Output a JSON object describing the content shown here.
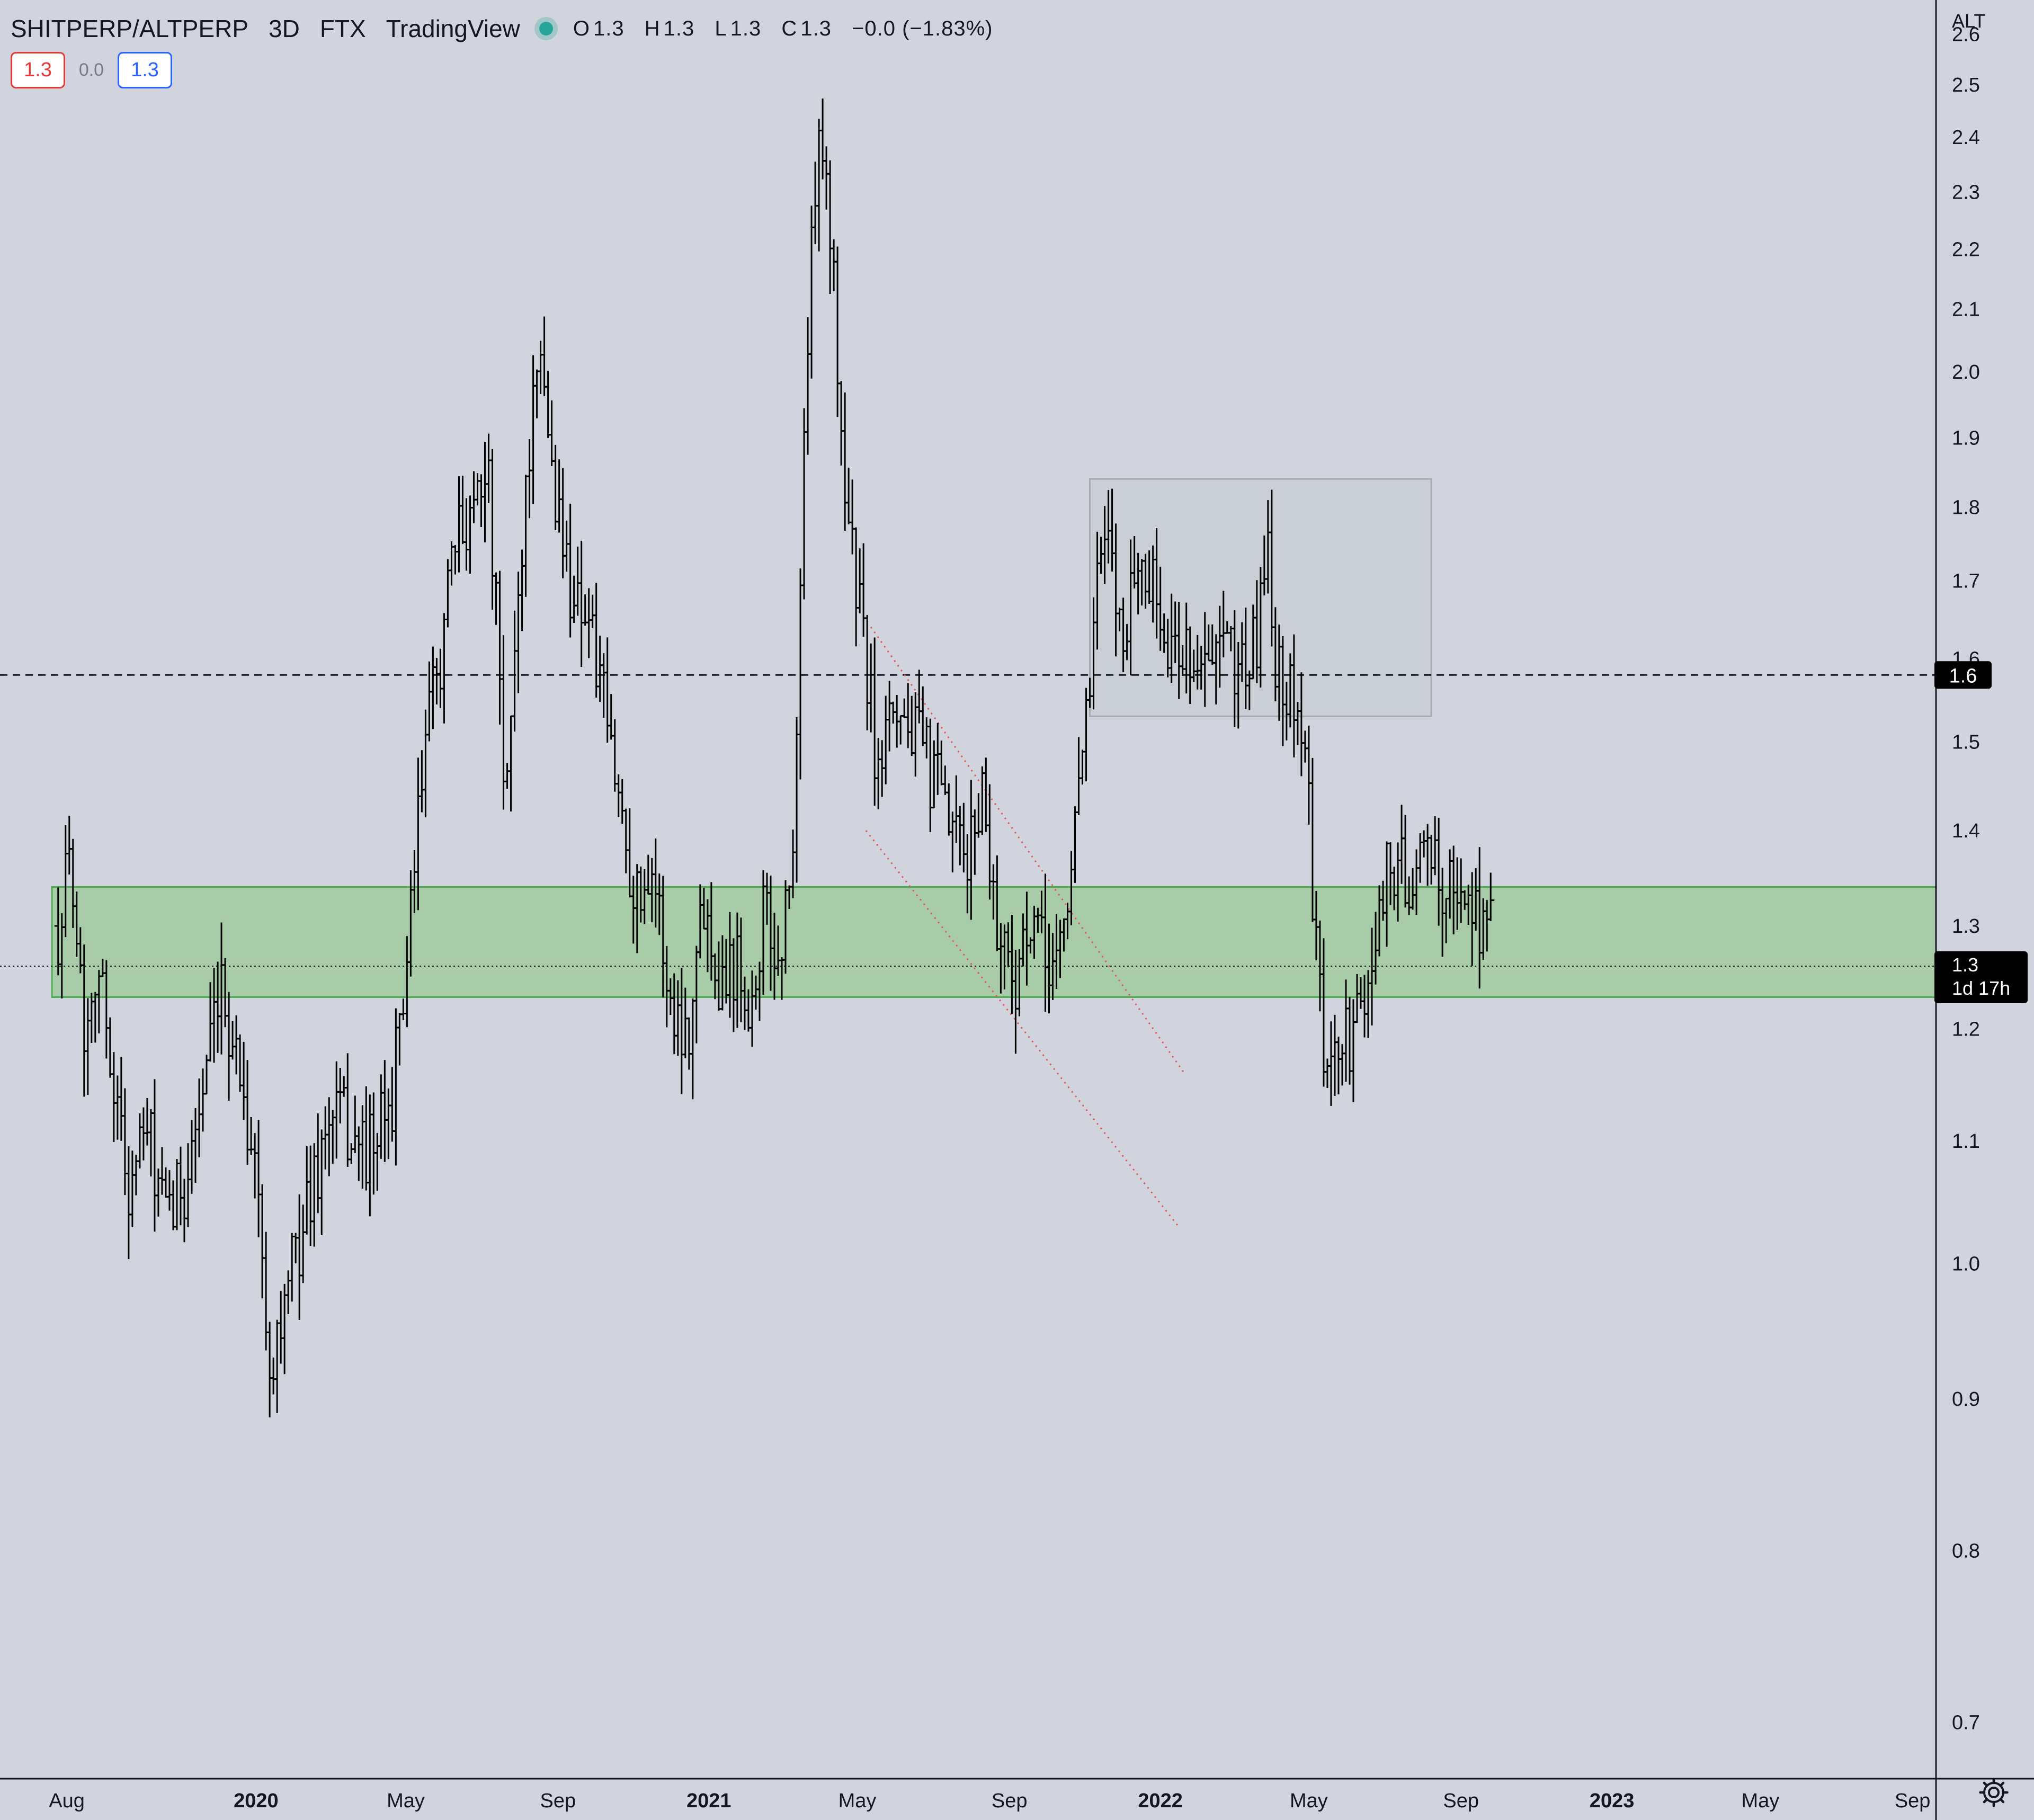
{
  "header": {
    "symbol": "SHITPERP/ALTPERP",
    "interval": "3D",
    "exchange": "FTX",
    "source": "TradingView",
    "ohlc": {
      "o_label": "O",
      "o_value": "1.3",
      "h_label": "H",
      "h_value": "1.3",
      "l_label": "L",
      "l_value": "1.3",
      "c_label": "C",
      "c_value": "1.3",
      "change": "−0.0 (−1.83%)"
    }
  },
  "quote": {
    "bid": "1.3",
    "spread": "0.0",
    "ask": "1.3"
  },
  "colors": {
    "background": "#d1d4dc",
    "candles": "#000000",
    "support_zone_fill": "#a8cba8",
    "support_zone_border": "#4caf50",
    "range_box_fill": "#c9ccd3",
    "range_box_border": "#a7aab2",
    "trendline": "#e35a5a",
    "price_tag_bg": "#000000",
    "price_tag_text": "#ffffff",
    "status_dot": "#26a69a"
  },
  "icons": {
    "settings": "gear-icon"
  },
  "chart_data": {
    "type": "ohlc",
    "scale": "log",
    "grid": false,
    "y_axis": {
      "unit": "ALT",
      "ticks": [
        0.7,
        0.8,
        0.9,
        1.0,
        1.1,
        1.2,
        1.3,
        1.4,
        1.5,
        1.6,
        1.7,
        1.8,
        1.9,
        2.0,
        2.1,
        2.2,
        2.3,
        2.4,
        2.5,
        2.6
      ],
      "tick_labels": [
        "0.7",
        "0.8",
        "0.9",
        "1.0",
        "1.1",
        "1.2",
        "1.3",
        "1.4",
        "1.5",
        "1.6",
        "1.7",
        "1.8",
        "1.9",
        "2.0",
        "2.1",
        "2.2",
        "2.3",
        "2.4",
        "2.5",
        "2.6"
      ],
      "range": [
        0.67,
        2.67
      ]
    },
    "x_axis": {
      "range": [
        "2019-06-08",
        "2023-09-20"
      ],
      "ticks": [
        {
          "label": "Aug",
          "date": "2019-08-01",
          "bold": false
        },
        {
          "label": "2020",
          "date": "2020-01-01",
          "bold": true
        },
        {
          "label": "May",
          "date": "2020-05-01",
          "bold": false
        },
        {
          "label": "Sep",
          "date": "2020-09-01",
          "bold": false
        },
        {
          "label": "2021",
          "date": "2021-01-01",
          "bold": true
        },
        {
          "label": "May",
          "date": "2021-05-01",
          "bold": false
        },
        {
          "label": "Sep",
          "date": "2021-09-01",
          "bold": false
        },
        {
          "label": "2022",
          "date": "2022-01-01",
          "bold": true
        },
        {
          "label": "May",
          "date": "2022-05-01",
          "bold": false
        },
        {
          "label": "Sep",
          "date": "2022-09-01",
          "bold": false
        },
        {
          "label": "2023",
          "date": "2023-01-01",
          "bold": true
        },
        {
          "label": "May",
          "date": "2023-05-01",
          "bold": false
        },
        {
          "label": "Sep",
          "date": "2023-09-01",
          "bold": false
        }
      ]
    },
    "price_trajectory": [
      [
        "2019-07-25",
        1.3
      ],
      [
        "2019-08-05",
        1.38
      ],
      [
        "2019-08-15",
        1.2
      ],
      [
        "2019-08-25",
        1.27
      ],
      [
        "2019-09-05",
        1.18
      ],
      [
        "2019-09-20",
        1.06
      ],
      [
        "2019-10-05",
        1.11
      ],
      [
        "2019-10-20",
        1.03
      ],
      [
        "2019-11-05",
        1.07
      ],
      [
        "2019-11-20",
        1.15
      ],
      [
        "2019-12-05",
        1.23
      ],
      [
        "2019-12-20",
        1.16
      ],
      [
        "2020-01-05",
        1.04
      ],
      [
        "2020-01-08",
        0.93
      ],
      [
        "2020-01-20",
        0.95
      ],
      [
        "2020-02-05",
        1.02
      ],
      [
        "2020-02-20",
        1.08
      ],
      [
        "2020-03-05",
        1.13
      ],
      [
        "2020-03-20",
        1.1
      ],
      [
        "2020-04-05",
        1.09
      ],
      [
        "2020-04-20",
        1.14
      ],
      [
        "2020-05-05",
        1.3
      ],
      [
        "2020-05-15",
        1.48
      ],
      [
        "2020-05-28",
        1.6
      ],
      [
        "2020-06-10",
        1.74
      ],
      [
        "2020-06-25",
        1.82
      ],
      [
        "2020-07-05",
        1.88
      ],
      [
        "2020-07-15",
        1.6
      ],
      [
        "2020-07-20",
        1.4
      ],
      [
        "2020-07-28",
        1.62
      ],
      [
        "2020-08-10",
        1.92
      ],
      [
        "2020-08-20",
        2.0
      ],
      [
        "2020-08-28",
        1.84
      ],
      [
        "2020-09-10",
        1.7
      ],
      [
        "2020-09-25",
        1.66
      ],
      [
        "2020-10-10",
        1.52
      ],
      [
        "2020-10-25",
        1.4
      ],
      [
        "2020-11-05",
        1.32
      ],
      [
        "2020-11-15",
        1.38
      ],
      [
        "2020-12-01",
        1.22
      ],
      [
        "2020-12-15",
        1.2
      ],
      [
        "2020-12-28",
        1.33
      ],
      [
        "2021-01-10",
        1.25
      ],
      [
        "2021-01-25",
        1.27
      ],
      [
        "2021-02-05",
        1.22
      ],
      [
        "2021-02-15",
        1.32
      ],
      [
        "2021-02-25",
        1.26
      ],
      [
        "2021-03-08",
        1.34
      ],
      [
        "2021-03-14",
        1.55
      ],
      [
        "2021-03-20",
        1.98
      ],
      [
        "2021-03-28",
        2.3
      ],
      [
        "2021-04-03",
        2.42
      ],
      [
        "2021-04-10",
        2.2
      ],
      [
        "2021-04-18",
        1.9
      ],
      [
        "2021-04-28",
        1.72
      ],
      [
        "2021-05-08",
        1.6
      ],
      [
        "2021-05-18",
        1.45
      ],
      [
        "2021-05-25",
        1.58
      ],
      [
        "2021-06-05",
        1.54
      ],
      [
        "2021-06-18",
        1.5
      ],
      [
        "2021-07-01",
        1.46
      ],
      [
        "2021-07-15",
        1.4
      ],
      [
        "2021-07-28",
        1.36
      ],
      [
        "2021-08-10",
        1.45
      ],
      [
        "2021-08-22",
        1.3
      ],
      [
        "2021-09-05",
        1.25
      ],
      [
        "2021-09-20",
        1.29
      ],
      [
        "2021-10-05",
        1.26
      ],
      [
        "2021-10-18",
        1.31
      ],
      [
        "2021-10-28",
        1.5
      ],
      [
        "2021-11-05",
        1.56
      ],
      [
        "2021-11-12",
        1.72
      ],
      [
        "2021-11-20",
        1.74
      ],
      [
        "2021-12-01",
        1.63
      ],
      [
        "2021-12-12",
        1.72
      ],
      [
        "2021-12-25",
        1.7
      ],
      [
        "2022-01-08",
        1.6
      ],
      [
        "2022-01-22",
        1.62
      ],
      [
        "2022-02-05",
        1.58
      ],
      [
        "2022-02-20",
        1.61
      ],
      [
        "2022-03-05",
        1.59
      ],
      [
        "2022-03-20",
        1.61
      ],
      [
        "2022-03-28",
        1.78
      ],
      [
        "2022-04-05",
        1.58
      ],
      [
        "2022-04-18",
        1.56
      ],
      [
        "2022-04-28",
        1.5
      ],
      [
        "2022-05-05",
        1.3
      ],
      [
        "2022-05-15",
        1.15
      ],
      [
        "2022-05-25",
        1.18
      ],
      [
        "2022-06-08",
        1.2
      ],
      [
        "2022-06-20",
        1.24
      ],
      [
        "2022-06-28",
        1.35
      ],
      [
        "2022-07-10",
        1.36
      ],
      [
        "2022-07-25",
        1.35
      ],
      [
        "2022-08-10",
        1.37
      ],
      [
        "2022-08-25",
        1.33
      ],
      [
        "2022-09-05",
        1.33
      ],
      [
        "2022-09-15",
        1.31
      ],
      [
        "2022-09-25",
        1.3
      ]
    ],
    "annotations": {
      "support_zone": {
        "y_low": 1.23,
        "y_high": 1.34,
        "x_start": "2019-07-20"
      },
      "range_box": {
        "y_low": 1.53,
        "y_high": 1.84,
        "x_start": "2021-11-05",
        "x_end": "2022-08-08"
      },
      "horizontal_line_price": 1.58,
      "current_price_line": 1.26,
      "trend_lines": [
        {
          "start": [
            "2021-05-12",
            1.64
          ],
          "end": [
            "2022-01-20",
            1.16
          ]
        },
        {
          "start": [
            "2021-05-08",
            1.4
          ],
          "end": [
            "2022-01-15",
            1.03
          ]
        }
      ]
    },
    "price_tags": {
      "line_tag": "1.6",
      "last_price": "1.3",
      "countdown": "1d 17h"
    }
  }
}
